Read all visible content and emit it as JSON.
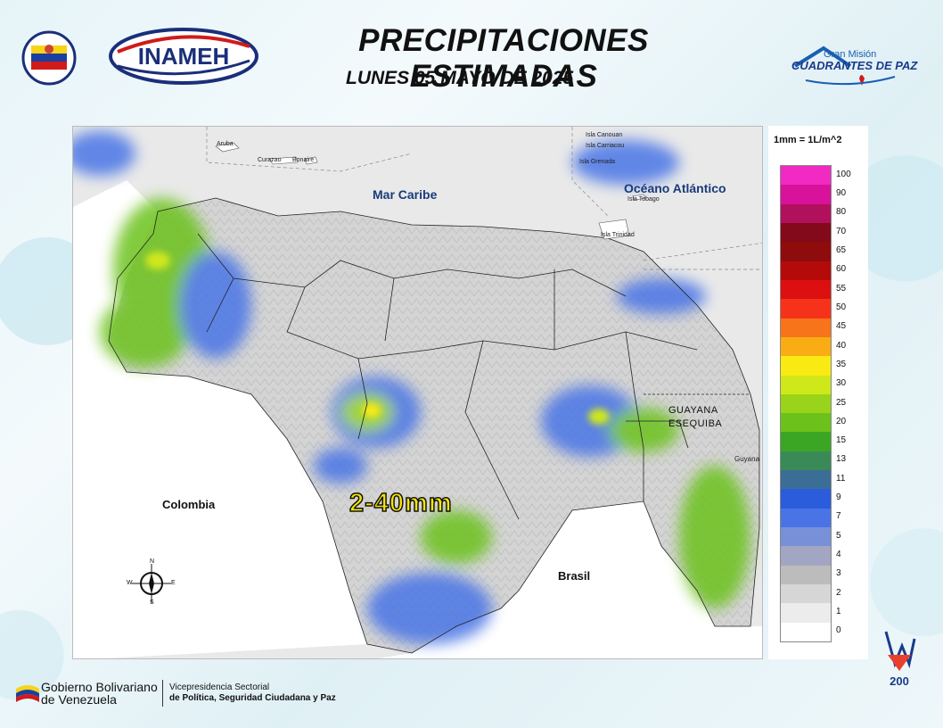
{
  "header": {
    "title": "PRECIPITACIONES ESTIMADAS",
    "subtitle": "LUNES 05 MAYO DE 2025",
    "inameh_logo_text": "INAMEH",
    "gran_mision_line1": "Gran Misión",
    "gran_mision_line2": "CUADRANTES DE PAZ"
  },
  "map": {
    "labels": {
      "mar_caribe": "Mar Caribe",
      "oceano_atlantico": "Océano Atlántico",
      "colombia": "Colombia",
      "brasil": "Brasil",
      "guyana": "Guyana",
      "guayana_1": "GUAYANA",
      "guayana_2": "ESEQUIBA",
      "aruba": "Aruba",
      "curazao": "Curazao",
      "bonaire": "Bonaire",
      "canouan": "Isla Canouan",
      "carriacou": "Isla Carriacou",
      "grenada": "Isla Grenada",
      "tobago": "Isla Tobago",
      "trinidad": "Isla Trinidad",
      "range": "2-40mm"
    },
    "compass": {
      "n": "N",
      "s": "S",
      "e": "E",
      "w": "W"
    }
  },
  "legend": {
    "unit": "1mm = 1L/m^2",
    "levels": [
      {
        "label": "100",
        "color": "#f22ac4"
      },
      {
        "label": "90",
        "color": "#d8129a"
      },
      {
        "label": "80",
        "color": "#b0105c"
      },
      {
        "label": "70",
        "color": "#820a1a"
      },
      {
        "label": "65",
        "color": "#8f0c0c"
      },
      {
        "label": "60",
        "color": "#b50a0a"
      },
      {
        "label": "55",
        "color": "#dc1010"
      },
      {
        "label": "50",
        "color": "#f7321a"
      },
      {
        "label": "45",
        "color": "#f7741a"
      },
      {
        "label": "40",
        "color": "#f9ac14"
      },
      {
        "label": "35",
        "color": "#f9ea14"
      },
      {
        "label": "30",
        "color": "#cfe81a"
      },
      {
        "label": "25",
        "color": "#99d41a"
      },
      {
        "label": "20",
        "color": "#6cc21a"
      },
      {
        "label": "15",
        "color": "#3aa624"
      },
      {
        "label": "13",
        "color": "#3a8a58"
      },
      {
        "label": "11",
        "color": "#3a6e96"
      },
      {
        "label": "9",
        "color": "#2a5cdc"
      },
      {
        "label": "7",
        "color": "#4a74e6"
      },
      {
        "label": "5",
        "color": "#7890d8"
      },
      {
        "label": "4",
        "color": "#a2a6c2"
      },
      {
        "label": "3",
        "color": "#bcbcbc"
      },
      {
        "label": "2",
        "color": "#d6d6d6"
      },
      {
        "label": "1",
        "color": "#ececec"
      },
      {
        "label": "0",
        "color": "#ffffff"
      }
    ]
  },
  "footer": {
    "gob_line1": "Gobierno Bolivariano",
    "gob_line2": "de Venezuela",
    "vp_line1": "Vicepresidencia Sectorial",
    "vp_line2": "de Política, Seguridad Ciudadana y Paz",
    "anniv_number": "200"
  }
}
